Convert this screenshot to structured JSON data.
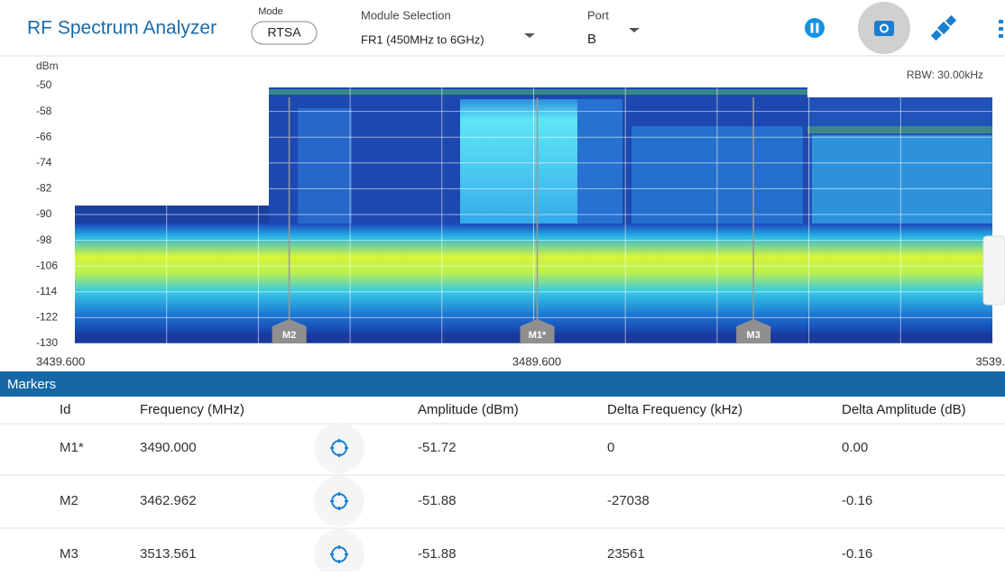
{
  "header": {
    "title": "RF Spectrum Analyzer",
    "mode_label": "Mode",
    "mode": "RTSA",
    "module_label": "Module Selection",
    "module": "FR1 (450MHz to 6GHz)",
    "port_label": "Port",
    "port": "B"
  },
  "spectrum": {
    "y_unit": "dBm",
    "rbw": "RBW: 30.00kHz",
    "ylim": [
      -130,
      -50
    ],
    "yticks": [
      -50,
      -58,
      -66,
      -74,
      -82,
      -90,
      -98,
      -106,
      -114,
      -122,
      -130
    ],
    "xlim": [
      3439.6,
      3539.6
    ],
    "x_labels": [
      "3439.600",
      "3489.600",
      "3539."
    ]
  },
  "markers": {
    "title": "Markers",
    "columns": [
      "Id",
      "Frequency (MHz)",
      "Amplitude (dBm)",
      "Delta Frequency (kHz)",
      "Delta Amplitude (dB)"
    ],
    "rows": [
      [
        "M1*",
        "3490.000",
        "-51.72",
        "0",
        "0.00"
      ],
      [
        "M2",
        "3462.962",
        "-51.88",
        "-27038",
        "-0.16"
      ],
      [
        "M3",
        "3513.561",
        "-51.88",
        "23561",
        "-0.16"
      ]
    ]
  }
}
